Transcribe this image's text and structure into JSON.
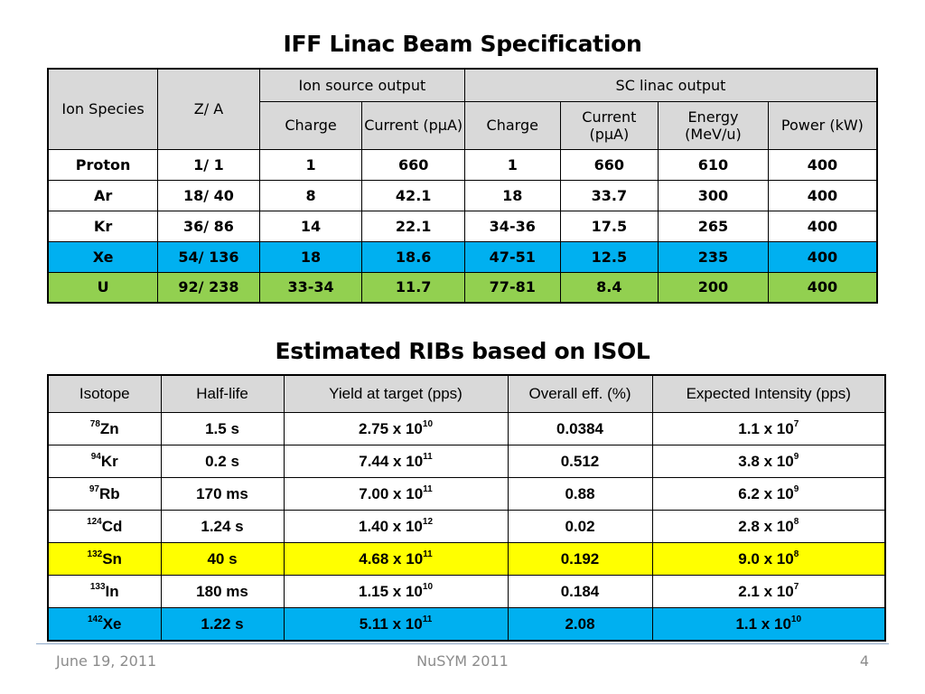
{
  "table1": {
    "title": "IFF Linac Beam Specification",
    "headers": {
      "ion_species": "Ion Species",
      "z_a": "Z/ A",
      "ion_source_output": "Ion source output",
      "sc_linac_output": "SC linac output",
      "charge": "Charge",
      "current": "Current (pμA)",
      "charge2": "Charge",
      "current2": "Current (pμA)",
      "energy": "Energy (MeV/u)",
      "power": "Power (kW)"
    },
    "rows": [
      {
        "species": "Proton",
        "za": "1/ 1",
        "src_charge": "1",
        "src_current": "660",
        "sc_charge": "1",
        "sc_current": "660",
        "energy": "610",
        "power": "400"
      },
      {
        "species": "Ar",
        "za": "18/ 40",
        "src_charge": "8",
        "src_current": "42.1",
        "sc_charge": "18",
        "sc_current": "33.7",
        "energy": "300",
        "power": "400"
      },
      {
        "species": "Kr",
        "za": "36/ 86",
        "src_charge": "14",
        "src_current": "22.1",
        "sc_charge": "34-36",
        "sc_current": "17.5",
        "energy": "265",
        "power": "400"
      },
      {
        "species": "Xe",
        "za": "54/ 136",
        "src_charge": "18",
        "src_current": "18.6",
        "sc_charge": "47-51",
        "sc_current": "12.5",
        "energy": "235",
        "power": "400"
      },
      {
        "species": "U",
        "za": "92/ 238",
        "src_charge": "33-34",
        "src_current": "11.7",
        "sc_charge": "77-81",
        "sc_current": "8.4",
        "energy": "200",
        "power": "400"
      }
    ],
    "highlight_colors": {
      "Xe": "#00b0f0",
      "U": "#92d050"
    }
  },
  "table2": {
    "title": "Estimated RIBs based on ISOL",
    "headers": {
      "isotope": "Isotope",
      "half_life": "Half-life",
      "yield": "Yield at target  (pps)",
      "overall_eff": "Overall eff. (%)",
      "expected": "Expected Intensity (pps)"
    },
    "rows": [
      {
        "mass": "78",
        "element": "Zn",
        "half_life": "1.5 s",
        "yield_base": "2.75 x 10",
        "yield_exp": "10",
        "eff": "0.0384",
        "int_base": "1.1 x 10",
        "int_exp": "7"
      },
      {
        "mass": "94",
        "element": "Kr",
        "half_life": "0.2 s",
        "yield_base": "7.44 x 10",
        "yield_exp": "11",
        "eff": "0.512",
        "int_base": "3.8 x 10",
        "int_exp": "9"
      },
      {
        "mass": "97",
        "element": "Rb",
        "half_life": "170 ms",
        "yield_base": "7.00 x 10",
        "yield_exp": "11",
        "eff": "0.88",
        "int_base": "6.2 x 10",
        "int_exp": "9"
      },
      {
        "mass": "124",
        "element": "Cd",
        "half_life": "1.24 s",
        "yield_base": "1.40 x 10",
        "yield_exp": "12",
        "eff": "0.02",
        "int_base": "2.8 x 10",
        "int_exp": "8"
      },
      {
        "mass": "132",
        "element": "Sn",
        "half_life": "40 s",
        "yield_base": "4.68 x 10",
        "yield_exp": "11",
        "eff": "0.192",
        "int_base": "9.0 x 10",
        "int_exp": "8"
      },
      {
        "mass": "133",
        "element": "In",
        "half_life": "180 ms",
        "yield_base": "1.15 x 10",
        "yield_exp": "10",
        "eff": "0.184",
        "int_base": "2.1 x 10",
        "int_exp": "7"
      },
      {
        "mass": "142",
        "element": "Xe",
        "half_life": "1.22 s",
        "yield_base": "5.11 x 10",
        "yield_exp": "11",
        "eff": "2.08",
        "int_base": "1.1 x 10",
        "int_exp": "10"
      }
    ],
    "highlight_colors": {
      "Sn": "#ffff00",
      "Xe": "#00b0f0"
    }
  },
  "footer": {
    "date": "June 19, 2011",
    "conference": "NuSYM 2011",
    "page": "4"
  }
}
